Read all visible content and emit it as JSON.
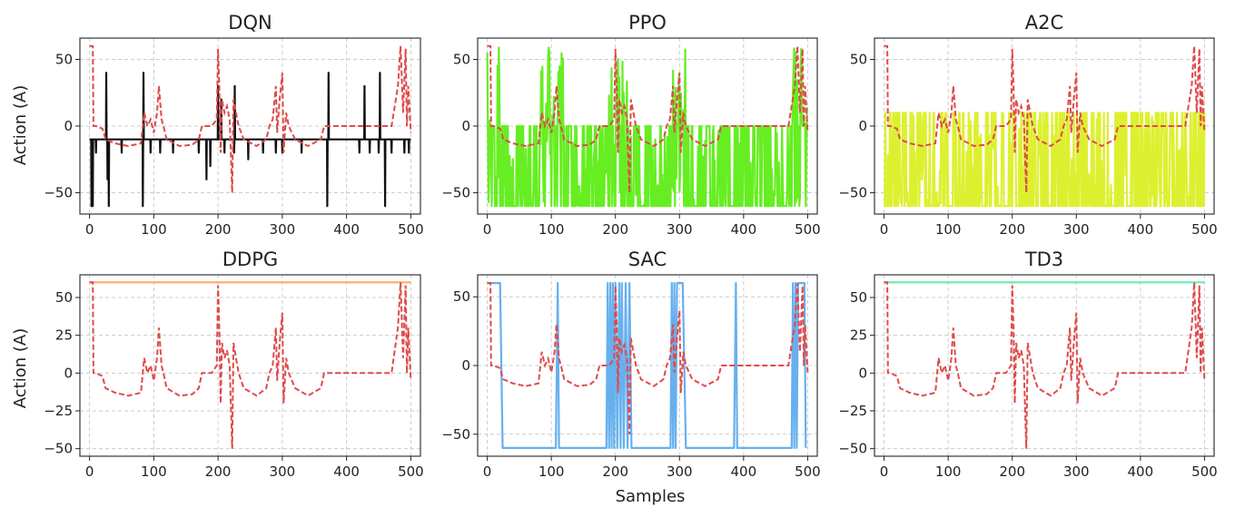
{
  "figure": {
    "shared_xlabel": "Samples",
    "shared_ylabel": "Action (A)"
  },
  "chart_data": [
    {
      "type": "line",
      "title": "DQN",
      "xlabel": "",
      "ylabel": "Action (A)",
      "xlim": [
        -15,
        515
      ],
      "ylim": [
        -66,
        66
      ],
      "xticks": [
        0,
        100,
        200,
        300,
        400,
        500
      ],
      "yticks": [
        -50,
        0,
        50
      ],
      "ytick_labels": [
        "−50",
        "0",
        "50"
      ],
      "grid": true,
      "series": [
        {
          "kind": "agent",
          "color": "#111111",
          "style": "solid",
          "base": -10,
          "spikes": [
            [
              3,
              -60
            ],
            [
              5,
              -60
            ],
            [
              10,
              -20
            ],
            [
              26,
              40
            ],
            [
              28,
              -40
            ],
            [
              30,
              -60
            ],
            [
              50,
              -20
            ],
            [
              83,
              -60
            ],
            [
              84,
              40
            ],
            [
              95,
              -20
            ],
            [
              110,
              -20
            ],
            [
              130,
              -20
            ],
            [
              170,
              -20
            ],
            [
              182,
              -40
            ],
            [
              188,
              -30
            ],
            [
              200,
              30
            ],
            [
              205,
              20
            ],
            [
              210,
              -20
            ],
            [
              225,
              -20
            ],
            [
              226,
              30
            ],
            [
              247,
              -25
            ],
            [
              270,
              -20
            ],
            [
              290,
              -20
            ],
            [
              300,
              -20
            ],
            [
              330,
              -20
            ],
            [
              370,
              -60
            ],
            [
              372,
              40
            ],
            [
              420,
              -20
            ],
            [
              428,
              30
            ],
            [
              436,
              -20
            ],
            [
              450,
              -20
            ],
            [
              452,
              40
            ],
            [
              460,
              -60
            ],
            [
              470,
              -20
            ],
            [
              490,
              -20
            ],
            [
              497,
              -20
            ]
          ]
        },
        {
          "kind": "reference",
          "color": "#e04a4a",
          "style": "dashed",
          "ref_scale": 1.0
        }
      ]
    },
    {
      "type": "line",
      "title": "PPO",
      "xlabel": "",
      "ylabel": "",
      "xlim": [
        -15,
        515
      ],
      "ylim": [
        -66,
        66
      ],
      "xticks": [
        0,
        100,
        200,
        300,
        400,
        500
      ],
      "yticks": [
        -50,
        0,
        50
      ],
      "ytick_labels": [
        "−50",
        "0",
        "50"
      ],
      "grid": true,
      "series": [
        {
          "kind": "agent",
          "color": "#66ee22",
          "style": "solid",
          "noise": {
            "seed": 7,
            "low": -60,
            "high": 0,
            "high_max": 60,
            "burst_x": [
              [
                0,
                20
              ],
              [
                80,
                120
              ],
              [
                190,
                220
              ],
              [
                290,
                310
              ],
              [
                470,
                500
              ]
            ]
          }
        },
        {
          "kind": "reference",
          "color": "#e04a4a",
          "style": "dashed",
          "ref_scale": 1.0
        }
      ]
    },
    {
      "type": "line",
      "title": "A2C",
      "xlabel": "",
      "ylabel": "",
      "xlim": [
        -15,
        515
      ],
      "ylim": [
        -66,
        66
      ],
      "xticks": [
        0,
        100,
        200,
        300,
        400,
        500
      ],
      "yticks": [
        -50,
        0,
        50
      ],
      "ytick_labels": [
        "−50",
        "0",
        "50"
      ],
      "grid": true,
      "series": [
        {
          "kind": "agent",
          "color": "#ddf030",
          "style": "solid",
          "noise": {
            "seed": 13,
            "low": -60,
            "high": 10,
            "high_max": 20,
            "burst_x": []
          }
        },
        {
          "kind": "reference",
          "color": "#e04a4a",
          "style": "dashed",
          "ref_scale": 1.0
        }
      ]
    },
    {
      "type": "line",
      "title": "DDPG",
      "xlabel": "",
      "ylabel": "Action (A)",
      "xlim": [
        -15,
        515
      ],
      "ylim": [
        -55,
        65
      ],
      "xticks": [
        0,
        100,
        200,
        300,
        400,
        500
      ],
      "yticks": [
        -50,
        -25,
        0,
        25,
        50
      ],
      "ytick_labels": [
        "−50",
        "−25",
        "0",
        "25",
        "50"
      ],
      "grid": true,
      "series": [
        {
          "kind": "agent",
          "color": "#ffaa66",
          "style": "solid",
          "constant": 60
        },
        {
          "kind": "reference",
          "color": "#e04a4a",
          "style": "dashed",
          "ref_scale": 1.0
        }
      ]
    },
    {
      "type": "line",
      "title": "SAC",
      "xlabel": "Samples",
      "ylabel": "",
      "xlim": [
        -15,
        515
      ],
      "ylim": [
        -66,
        66
      ],
      "xticks": [
        0,
        100,
        200,
        300,
        400,
        500
      ],
      "yticks": [
        -50,
        0,
        50
      ],
      "ytick_labels": [
        "−50",
        "0",
        "50"
      ],
      "grid": true,
      "series": [
        {
          "kind": "agent",
          "color": "#66b0f0",
          "style": "solid",
          "segments": [
            [
              0,
              60
            ],
            [
              20,
              60
            ],
            [
              24,
              -60
            ],
            [
              107,
              -60
            ],
            [
              110,
              60
            ],
            [
              112,
              -60
            ],
            [
              186,
              -60
            ],
            [
              188,
              60
            ],
            [
              190,
              -60
            ],
            [
              192,
              60
            ],
            [
              194,
              -60
            ],
            [
              196,
              60
            ],
            [
              198,
              -60
            ],
            [
              200,
              60
            ],
            [
              203,
              -60
            ],
            [
              206,
              60
            ],
            [
              208,
              -60
            ],
            [
              210,
              60
            ],
            [
              213,
              -60
            ],
            [
              216,
              60
            ],
            [
              219,
              -60
            ],
            [
              222,
              60
            ],
            [
              225,
              -60
            ],
            [
              286,
              -60
            ],
            [
              288,
              60
            ],
            [
              290,
              -60
            ],
            [
              292,
              60
            ],
            [
              294,
              -60
            ],
            [
              296,
              60
            ],
            [
              298,
              60
            ],
            [
              305,
              60
            ],
            [
              310,
              -60
            ],
            [
              385,
              -60
            ],
            [
              388,
              60
            ],
            [
              390,
              -60
            ],
            [
              475,
              -60
            ],
            [
              477,
              60
            ],
            [
              479,
              -60
            ],
            [
              481,
              60
            ],
            [
              483,
              -60
            ],
            [
              485,
              60
            ],
            [
              495,
              60
            ],
            [
              497,
              -60
            ]
          ]
        },
        {
          "kind": "reference",
          "color": "#e04a4a",
          "style": "dashed",
          "ref_scale": 1.0
        }
      ]
    },
    {
      "type": "line",
      "title": "TD3",
      "xlabel": "",
      "ylabel": "",
      "xlim": [
        -15,
        515
      ],
      "ylim": [
        -55,
        65
      ],
      "xticks": [
        0,
        100,
        200,
        300,
        400,
        500
      ],
      "yticks": [
        -50,
        -25,
        0,
        25,
        50
      ],
      "ytick_labels": [
        "−50",
        "−25",
        "0",
        "25",
        "50"
      ],
      "grid": true,
      "series": [
        {
          "kind": "agent",
          "color": "#66eeaa",
          "style": "solid",
          "constant": 60
        },
        {
          "kind": "reference",
          "color": "#e04a4a",
          "style": "dashed",
          "ref_scale": 1.0
        }
      ]
    }
  ],
  "reference_curve": [
    [
      0,
      60
    ],
    [
      5,
      60
    ],
    [
      6,
      0
    ],
    [
      10,
      0
    ],
    [
      20,
      -2
    ],
    [
      25,
      -10
    ],
    [
      40,
      -13
    ],
    [
      60,
      -15
    ],
    [
      80,
      -13
    ],
    [
      85,
      10
    ],
    [
      90,
      0
    ],
    [
      95,
      5
    ],
    [
      100,
      -5
    ],
    [
      105,
      10
    ],
    [
      108,
      30
    ],
    [
      112,
      5
    ],
    [
      115,
      0
    ],
    [
      120,
      -10
    ],
    [
      140,
      -15
    ],
    [
      160,
      -14
    ],
    [
      170,
      -10
    ],
    [
      175,
      0
    ],
    [
      190,
      0
    ],
    [
      198,
      5
    ],
    [
      200,
      58
    ],
    [
      202,
      30
    ],
    [
      204,
      -20
    ],
    [
      206,
      20
    ],
    [
      210,
      10
    ],
    [
      214,
      15
    ],
    [
      218,
      5
    ],
    [
      222,
      -50
    ],
    [
      224,
      20
    ],
    [
      228,
      10
    ],
    [
      232,
      0
    ],
    [
      240,
      -10
    ],
    [
      260,
      -15
    ],
    [
      275,
      -10
    ],
    [
      280,
      0
    ],
    [
      285,
      5
    ],
    [
      290,
      30
    ],
    [
      292,
      -5
    ],
    [
      296,
      20
    ],
    [
      300,
      40
    ],
    [
      302,
      -20
    ],
    [
      306,
      10
    ],
    [
      310,
      0
    ],
    [
      320,
      -10
    ],
    [
      340,
      -15
    ],
    [
      360,
      -10
    ],
    [
      365,
      0
    ],
    [
      400,
      0
    ],
    [
      440,
      0
    ],
    [
      470,
      0
    ],
    [
      480,
      30
    ],
    [
      484,
      60
    ],
    [
      488,
      10
    ],
    [
      492,
      58
    ],
    [
      494,
      0
    ],
    [
      496,
      30
    ],
    [
      500,
      -5
    ]
  ]
}
